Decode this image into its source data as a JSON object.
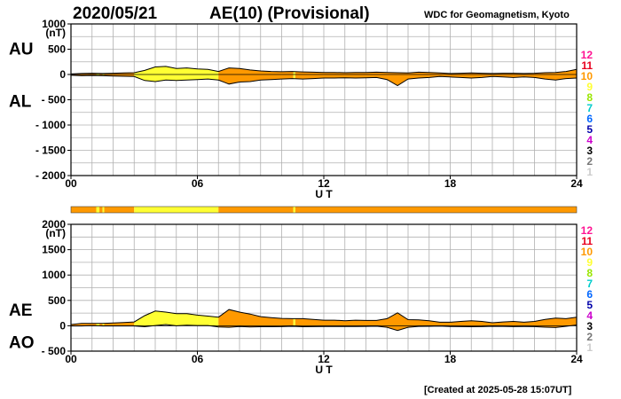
{
  "header": {
    "date": "2020/05/21",
    "title": "AE(10) (Provisional)",
    "source": "WDC for Geomagnetism, Kyoto"
  },
  "footer": {
    "created": "[Created at 2025-05-28 15:07UT]"
  },
  "legend": {
    "labels": [
      "12",
      "11",
      "10",
      "9",
      "8",
      "7",
      "6",
      "5",
      "4",
      "3",
      "2",
      "1"
    ],
    "colors": [
      "#ff1493",
      "#e8001e",
      "#ff9900",
      "#ffff33",
      "#99e600",
      "#00cccc",
      "#0066ff",
      "#0000aa",
      "#cc00cc",
      "#000000",
      "#777777",
      "#cccccc"
    ]
  },
  "chart_data": [
    {
      "type": "area",
      "name": "AU/AL",
      "top_label": "AU",
      "bottom_label": "AL",
      "xlabel": "U T",
      "ylabel_unit": "(nT)",
      "xlim": [
        0,
        24
      ],
      "ylim": [
        -2000,
        1000
      ],
      "x_ticks": [
        "00",
        "06",
        "12",
        "18",
        "24"
      ],
      "y_ticks": [
        "1000",
        "500",
        "0",
        "- 500",
        "- 1000",
        "- 1500",
        "- 2000"
      ],
      "x": [
        0,
        0.5,
        1,
        1.5,
        2,
        2.5,
        3,
        3.5,
        4,
        4.5,
        5,
        5.5,
        6,
        6.5,
        7,
        7.5,
        8,
        8.5,
        9,
        9.5,
        10,
        10.5,
        11,
        11.5,
        12,
        12.5,
        13,
        13.5,
        14,
        14.5,
        15,
        15.5,
        16,
        16.5,
        17,
        17.5,
        18,
        18.5,
        19,
        19.5,
        20,
        20.5,
        21,
        21.5,
        22,
        22.5,
        23,
        23.5,
        24
      ],
      "series": [
        {
          "name": "AU",
          "values": [
            10,
            20,
            25,
            20,
            25,
            30,
            35,
            80,
            150,
            160,
            120,
            130,
            110,
            100,
            60,
            130,
            120,
            90,
            70,
            60,
            55,
            60,
            50,
            45,
            40,
            40,
            35,
            40,
            40,
            45,
            40,
            35,
            30,
            45,
            40,
            30,
            20,
            25,
            30,
            25,
            20,
            25,
            25,
            20,
            25,
            35,
            40,
            60,
            100
          ]
        },
        {
          "name": "AL",
          "values": [
            -15,
            -25,
            -20,
            -25,
            -30,
            -35,
            -40,
            -120,
            -140,
            -110,
            -120,
            -110,
            -100,
            -90,
            -110,
            -190,
            -150,
            -140,
            -110,
            -100,
            -90,
            -80,
            -90,
            -80,
            -70,
            -70,
            -65,
            -70,
            -65,
            -60,
            -100,
            -220,
            -90,
            -70,
            -60,
            -40,
            -50,
            -60,
            -70,
            -60,
            -40,
            -50,
            -60,
            -50,
            -60,
            -90,
            -110,
            -80,
            -70
          ]
        }
      ]
    },
    {
      "type": "area",
      "name": "AE/AO",
      "top_label": "AE",
      "bottom_label": "AO",
      "xlabel": "U T",
      "ylabel_unit": "(nT)",
      "xlim": [
        0,
        24
      ],
      "ylim": [
        -500,
        2000
      ],
      "x_ticks": [
        "00",
        "06",
        "12",
        "18",
        "24"
      ],
      "y_ticks": [
        "2000",
        "1500",
        "1000",
        "500",
        "0",
        "- 500"
      ],
      "x": [
        0,
        0.5,
        1,
        1.5,
        2,
        2.5,
        3,
        3.5,
        4,
        4.5,
        5,
        5.5,
        6,
        6.5,
        7,
        7.5,
        8,
        8.5,
        9,
        9.5,
        10,
        10.5,
        11,
        11.5,
        12,
        12.5,
        13,
        13.5,
        14,
        14.5,
        15,
        15.5,
        16,
        16.5,
        17,
        17.5,
        18,
        18.5,
        19,
        19.5,
        20,
        20.5,
        21,
        21.5,
        22,
        22.5,
        23,
        23.5,
        24
      ],
      "series": [
        {
          "name": "AE",
          "values": [
            25,
            45,
            45,
            45,
            55,
            65,
            75,
            200,
            290,
            270,
            240,
            240,
            210,
            190,
            170,
            320,
            270,
            230,
            180,
            160,
            145,
            140,
            140,
            125,
            110,
            110,
            100,
            110,
            105,
            105,
            140,
            255,
            120,
            115,
            100,
            70,
            70,
            85,
            100,
            85,
            60,
            75,
            85,
            70,
            85,
            125,
            150,
            140,
            170
          ]
        },
        {
          "name": "AO",
          "values": [
            -3,
            -3,
            3,
            -3,
            -3,
            -3,
            -3,
            -20,
            5,
            25,
            0,
            10,
            5,
            5,
            -25,
            -30,
            -15,
            -25,
            -20,
            -20,
            -18,
            -10,
            -20,
            -18,
            -15,
            -15,
            -15,
            -15,
            -13,
            -8,
            -30,
            -92,
            -30,
            -13,
            -10,
            -5,
            -15,
            -18,
            -20,
            -18,
            -10,
            -13,
            -18,
            -15,
            -18,
            -28,
            -35,
            -10,
            15
          ]
        }
      ]
    }
  ],
  "activity_bar": {
    "segments": [
      {
        "start": 0,
        "end": 1.2,
        "level": "10"
      },
      {
        "start": 1.2,
        "end": 1.35,
        "level": "9"
      },
      {
        "start": 1.35,
        "end": 1.5,
        "level": "10"
      },
      {
        "start": 1.5,
        "end": 1.58,
        "level": "9"
      },
      {
        "start": 1.58,
        "end": 3.0,
        "level": "10"
      },
      {
        "start": 3.0,
        "end": 7.0,
        "level": "9"
      },
      {
        "start": 7.0,
        "end": 10.55,
        "level": "10"
      },
      {
        "start": 10.55,
        "end": 10.65,
        "level": "9"
      },
      {
        "start": 10.65,
        "end": 24,
        "level": "10"
      }
    ]
  }
}
